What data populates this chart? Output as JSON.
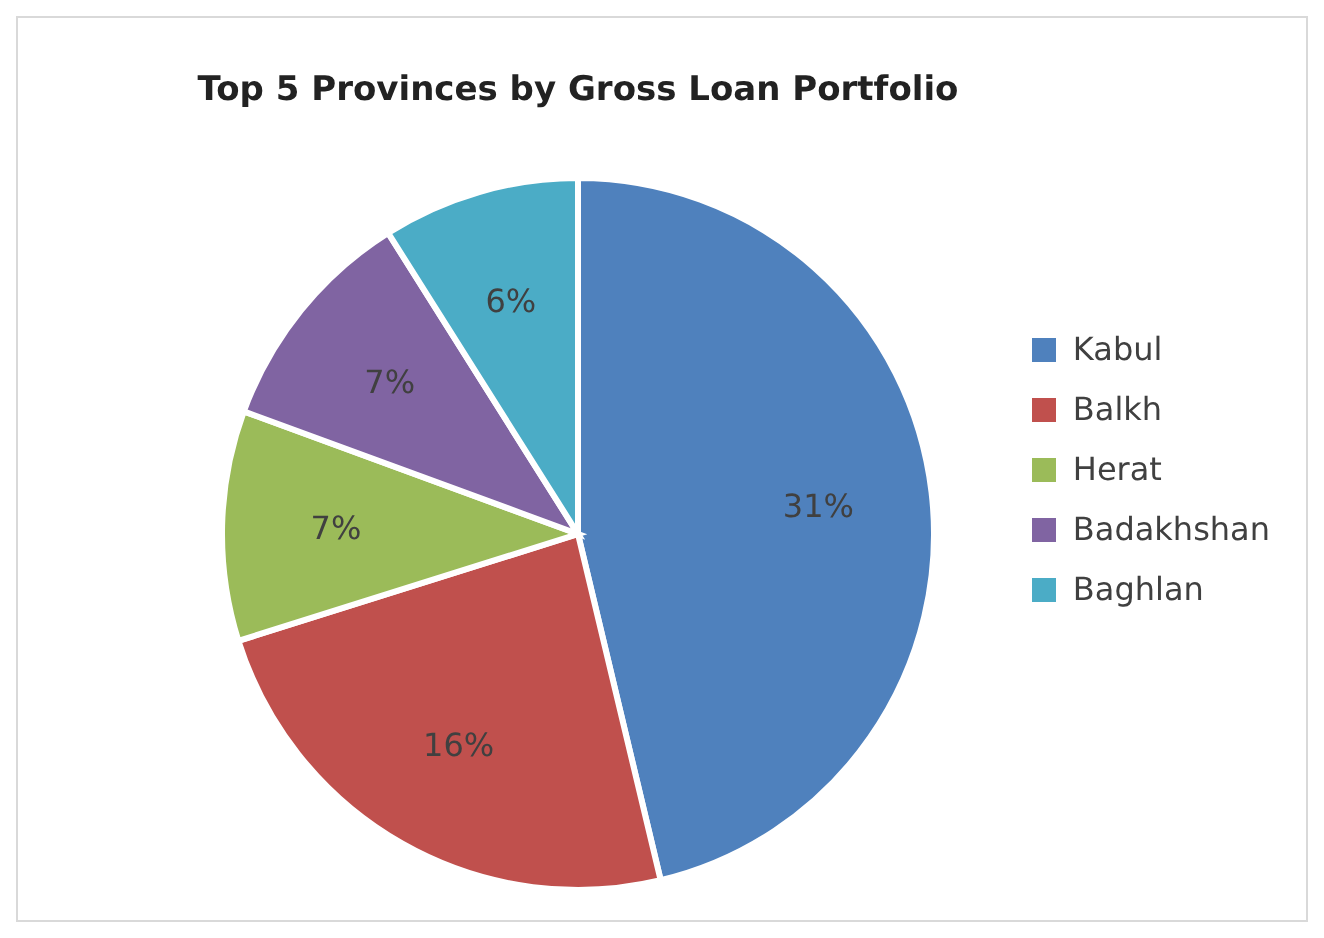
{
  "chart_data": {
    "type": "pie",
    "title": "Top 5 Provinces by Gross Loan Portfolio",
    "categories": [
      "Kabul",
      "Balkh",
      "Herat",
      "Badakhshan",
      "Baghlan"
    ],
    "values": [
      31,
      16,
      7,
      7,
      6
    ],
    "value_labels": [
      "31%",
      "16%",
      "7%",
      "7%",
      "6%"
    ],
    "colors": [
      "#4f81bd",
      "#c0504d",
      "#9bbb59",
      "#8064a2",
      "#4bacc6"
    ],
    "legend": "right"
  }
}
